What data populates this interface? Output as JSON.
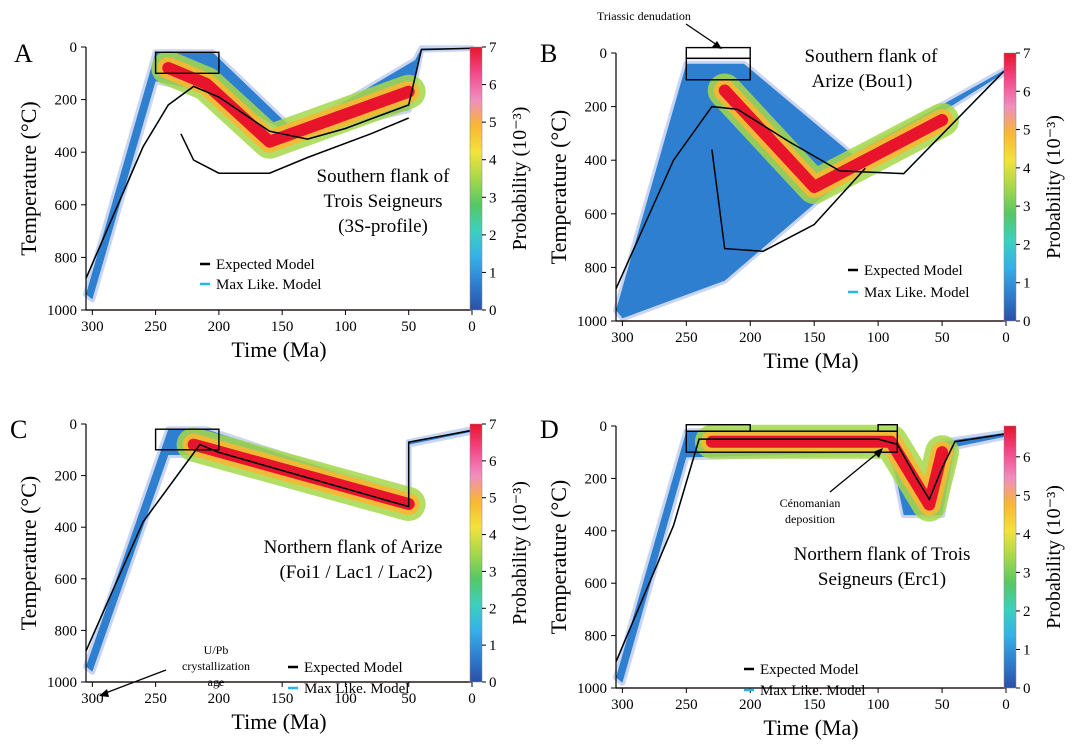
{
  "figure": {
    "colors": {
      "density_scale": [
        "#ffffff",
        "#2b4fa8",
        "#2e7fd0",
        "#36b0e8",
        "#3cd0c0",
        "#56c864",
        "#a6d84a",
        "#f4e23c",
        "#f7b733",
        "#f08ec0",
        "#f24a8a",
        "#e8142c"
      ],
      "expected_line": "#000000",
      "maxlike_line": "#27b4e8",
      "reference_line": "#e27a6a",
      "box": "#000000"
    }
  },
  "chart_data": [
    {
      "type": "heatmap",
      "panel_letter": "A",
      "title_lines": [
        "Southern flank of",
        "Trois Seigneurs",
        "(3S-profile)"
      ],
      "xlabel": "Time (Ma)",
      "ylabel": "Temperature (°C)",
      "xlim": [
        305,
        0
      ],
      "ylim": [
        1000,
        0
      ],
      "xticks": [
        "300",
        "250",
        "200",
        "150",
        "100",
        "50",
        "0"
      ],
      "yticks": [
        "0",
        "200",
        "400",
        "600",
        "800",
        "1000"
      ],
      "colorbar": {
        "label": "Probability (10⁻³)",
        "range": [
          0,
          7
        ],
        "ticks": [
          "0",
          "1",
          "2",
          "3",
          "4",
          "5",
          "6",
          "7"
        ]
      },
      "legend": [
        "Expected Model",
        "Max Like. Model"
      ],
      "constraint_boxes": [
        {
          "t": [
            250,
            200
          ],
          "T": [
            20,
            100
          ]
        }
      ],
      "envelope": {
        "upper": [
          [
            305,
            940
          ],
          [
            250,
            20
          ],
          [
            205,
            20
          ],
          [
            140,
            320
          ],
          [
            45,
            50
          ],
          [
            40,
            5
          ],
          [
            0,
            5
          ]
        ],
        "lower": [
          [
            0,
            5
          ],
          [
            40,
            10
          ],
          [
            50,
            240
          ],
          [
            140,
            340
          ],
          [
            200,
            180
          ],
          [
            250,
            130
          ],
          [
            300,
            960
          ]
        ]
      },
      "high_density_band": [
        [
          240,
          80
        ],
        [
          210,
          140
        ],
        [
          160,
          360
        ],
        [
          50,
          170
        ]
      ],
      "expected_model": [
        [
          305,
          880
        ],
        [
          260,
          380
        ],
        [
          240,
          220
        ],
        [
          220,
          150
        ],
        [
          200,
          190
        ],
        [
          160,
          320
        ],
        [
          130,
          350
        ],
        [
          100,
          310
        ],
        [
          50,
          220
        ],
        [
          40,
          10
        ],
        [
          0,
          5
        ]
      ],
      "expected_model_lower": [
        [
          230,
          330
        ],
        [
          220,
          430
        ],
        [
          200,
          480
        ],
        [
          160,
          480
        ],
        [
          130,
          420
        ],
        [
          80,
          330
        ],
        [
          50,
          270
        ]
      ],
      "reference_temperature": 1000
    },
    {
      "type": "heatmap",
      "panel_letter": "B",
      "title_lines": [
        "Southern flank of",
        "Arize (Bou1)"
      ],
      "xlabel": "Time (Ma)",
      "ylabel": "Temperature (°C)",
      "xlim": [
        305,
        0
      ],
      "ylim": [
        1000,
        0
      ],
      "xticks": [
        "300",
        "250",
        "200",
        "150",
        "100",
        "50",
        "0"
      ],
      "yticks": [
        "0",
        "200",
        "400",
        "600",
        "800",
        "1000"
      ],
      "colorbar": {
        "label": "Probability (10⁻³)",
        "range": [
          0,
          7
        ],
        "ticks": [
          "0",
          "1",
          "2",
          "3",
          "4",
          "5",
          "6",
          "7"
        ]
      },
      "legend": [
        "Expected Model",
        "Max Like. Model"
      ],
      "annotations": [
        "Triassic denudation"
      ],
      "constraint_boxes": [
        {
          "t": [
            250,
            200
          ],
          "T": [
            -20,
            20
          ]
        },
        {
          "t": [
            250,
            200
          ],
          "T": [
            20,
            100
          ]
        }
      ],
      "envelope": {
        "upper": [
          [
            305,
            960
          ],
          [
            250,
            40
          ],
          [
            205,
            40
          ],
          [
            120,
            380
          ],
          [
            0,
            60
          ]
        ],
        "lower": [
          [
            0,
            70
          ],
          [
            110,
            400
          ],
          [
            220,
            850
          ],
          [
            300,
            990
          ]
        ]
      },
      "high_density_band": [
        [
          220,
          140
        ],
        [
          150,
          500
        ],
        [
          50,
          250
        ]
      ],
      "expected_model": [
        [
          305,
          880
        ],
        [
          260,
          400
        ],
        [
          230,
          200
        ],
        [
          210,
          210
        ],
        [
          170,
          330
        ],
        [
          130,
          440
        ],
        [
          80,
          450
        ],
        [
          0,
          60
        ]
      ],
      "expected_model_lower": [
        [
          230,
          360
        ],
        [
          220,
          730
        ],
        [
          190,
          740
        ],
        [
          150,
          640
        ],
        [
          110,
          430
        ]
      ],
      "reference_temperature": 1000
    },
    {
      "type": "heatmap",
      "panel_letter": "C",
      "title_lines": [
        "Northern flank of Arize",
        "(Foi1 / Lac1 / Lac2)"
      ],
      "xlabel": "Time (Ma)",
      "ylabel": "Temperature (°C)",
      "xlim": [
        305,
        0
      ],
      "ylim": [
        1000,
        0
      ],
      "xticks": [
        "300",
        "250",
        "200",
        "150",
        "100",
        "50",
        "0"
      ],
      "yticks": [
        "0",
        "200",
        "400",
        "600",
        "800",
        "1000"
      ],
      "colorbar": {
        "label": "Probability (10⁻³)",
        "range": [
          0,
          7
        ],
        "ticks": [
          "0",
          "1",
          "2",
          "3",
          "4",
          "5",
          "6",
          "7"
        ]
      },
      "legend": [
        "Expected Model",
        "Max Like. Model"
      ],
      "annotations": [
        "U/Pb",
        "crystallization",
        "age"
      ],
      "constraint_boxes": [
        {
          "t": [
            250,
            200
          ],
          "T": [
            20,
            100
          ]
        }
      ],
      "envelope": {
        "upper": [
          [
            305,
            940
          ],
          [
            240,
            20
          ],
          [
            210,
            20
          ],
          [
            50,
            280
          ],
          [
            50,
            70
          ],
          [
            0,
            20
          ]
        ],
        "lower": [
          [
            0,
            30
          ],
          [
            50,
            80
          ],
          [
            50,
            330
          ],
          [
            210,
            120
          ],
          [
            240,
            120
          ],
          [
            300,
            960
          ]
        ]
      },
      "high_density_band": [
        [
          220,
          80
        ],
        [
          50,
          310
        ]
      ],
      "expected_model": [
        [
          305,
          880
        ],
        [
          260,
          380
        ],
        [
          215,
          80
        ],
        [
          200,
          110
        ],
        [
          50,
          320
        ],
        [
          50,
          70
        ],
        [
          0,
          25
        ]
      ],
      "reference_temperature": 1000
    },
    {
      "type": "heatmap",
      "panel_letter": "D",
      "title_lines": [
        "Northern flank of Trois",
        "Seigneurs (Erc1)"
      ],
      "xlabel": "Time (Ma)",
      "ylabel": "Temperature (°C)",
      "xlim": [
        305,
        0
      ],
      "ylim": [
        1000,
        0
      ],
      "xticks": [
        "300",
        "250",
        "200",
        "150",
        "100",
        "50",
        "0"
      ],
      "yticks": [
        "0",
        "200",
        "400",
        "600",
        "800",
        "1000"
      ],
      "colorbar": {
        "label": "Probability (10⁻³)",
        "range": [
          0,
          6.8
        ],
        "ticks": [
          "0",
          "1",
          "2",
          "3",
          "4",
          "5",
          "6"
        ]
      },
      "legend": [
        "Expected Model",
        "Max Like. Model"
      ],
      "annotations": [
        "Cénomanian",
        "deposition"
      ],
      "constraint_boxes": [
        {
          "t": [
            250,
            200
          ],
          "T": [
            -5,
            20
          ]
        },
        {
          "t": [
            100,
            85
          ],
          "T": [
            -5,
            20
          ]
        },
        {
          "t": [
            250,
            85
          ],
          "T": [
            20,
            100
          ]
        }
      ],
      "envelope": {
        "upper": [
          [
            305,
            960
          ],
          [
            250,
            20
          ],
          [
            90,
            20
          ],
          [
            70,
            200
          ],
          [
            60,
            220
          ],
          [
            50,
            60
          ],
          [
            0,
            25
          ]
        ],
        "lower": [
          [
            0,
            40
          ],
          [
            40,
            80
          ],
          [
            50,
            340
          ],
          [
            80,
            340
          ],
          [
            90,
            100
          ],
          [
            250,
            120
          ],
          [
            300,
            980
          ]
        ]
      },
      "high_density_band": [
        [
          230,
          60
        ],
        [
          90,
          60
        ],
        [
          60,
          300
        ],
        [
          50,
          100
        ]
      ],
      "expected_model": [
        [
          305,
          900
        ],
        [
          260,
          380
        ],
        [
          240,
          50
        ],
        [
          100,
          50
        ],
        [
          85,
          70
        ],
        [
          70,
          200
        ],
        [
          60,
          280
        ],
        [
          50,
          160
        ],
        [
          40,
          60
        ],
        [
          0,
          30
        ]
      ],
      "reference_temperature": 1000
    }
  ]
}
